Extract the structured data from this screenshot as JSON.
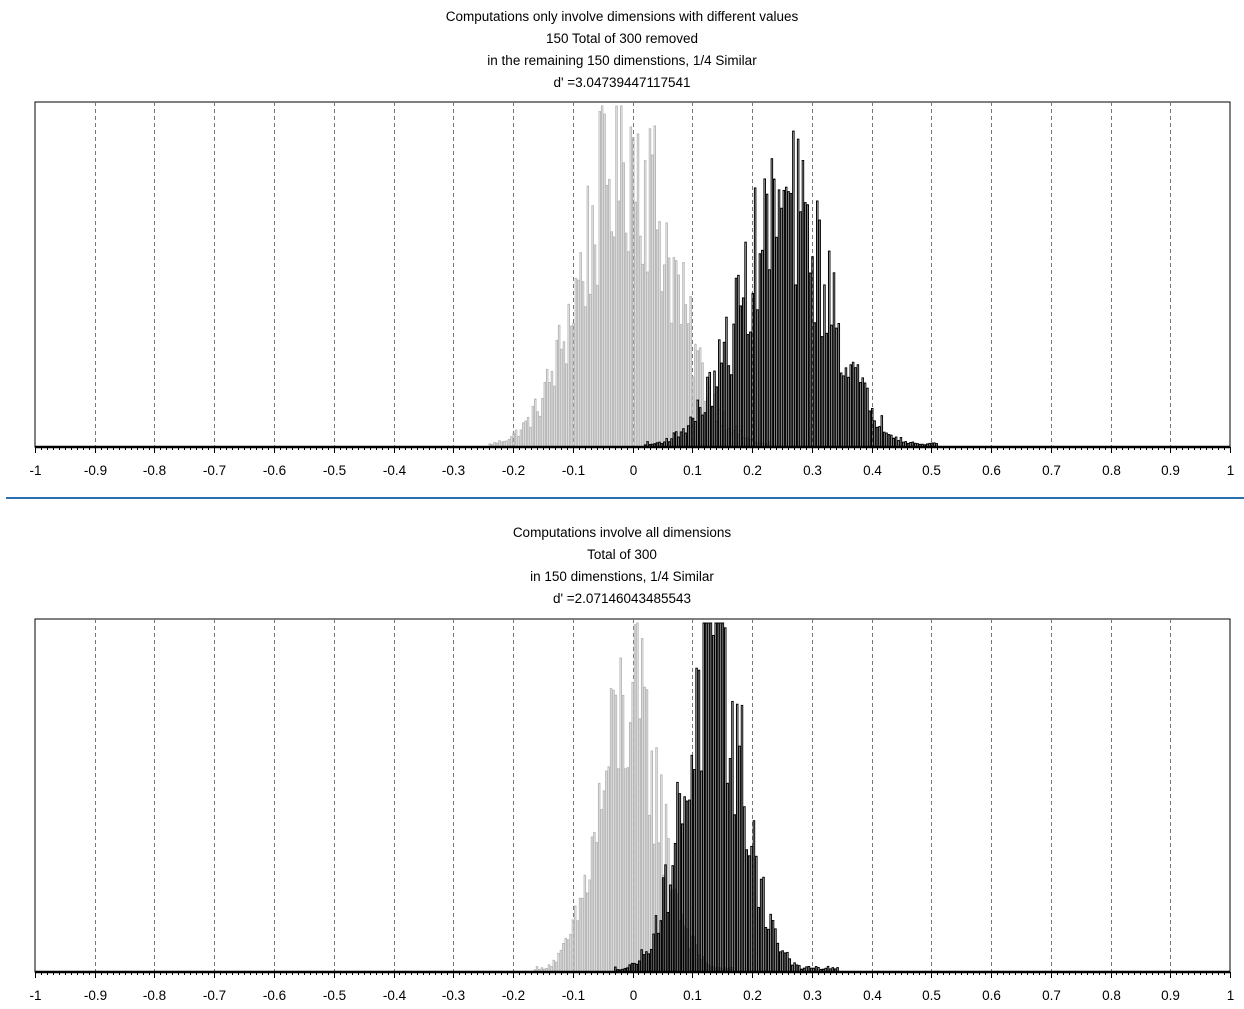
{
  "chart_data": [
    {
      "type": "bar",
      "title_lines": [
        "Computations only involve dimensions with different values",
        "150 Total of 300 removed",
        "in the remaining 150 dimenstions, 1/4 Similar",
        "d' =3.04739447117541"
      ],
      "xlim": [
        -1,
        1
      ],
      "x_ticks": [
        "-1",
        "-0.9",
        "-0.8",
        "-0.7",
        "-0.6",
        "-0.5",
        "-0.4",
        "-0.3",
        "-0.2",
        "-0.1",
        "0",
        "0.1",
        "0.2",
        "0.3",
        "0.4",
        "0.5",
        "0.6",
        "0.7",
        "0.8",
        "0.9",
        "1"
      ],
      "grid": true,
      "series": [
        {
          "color": "#b8b8b8",
          "distribution": {
            "mean": -0.01,
            "sd": 0.075,
            "min": -0.24,
            "max": 0.23,
            "peak": 1.0
          }
        },
        {
          "color": "#000000",
          "distribution": {
            "mean": 0.255,
            "sd": 0.075,
            "min": 0.02,
            "max": 0.51,
            "peak": 0.8
          }
        }
      ]
    },
    {
      "type": "bar",
      "title_lines": [
        "Computations involve all dimensions",
        "Total of 300",
        "in 150 dimenstions, 1/4 Similar",
        "d' =2.07146043485543"
      ],
      "xlim": [
        -1,
        1
      ],
      "x_ticks": [
        "-1",
        "-0.9",
        "-0.8",
        "-0.7",
        "-0.6",
        "-0.5",
        "-0.4",
        "-0.3",
        "-0.2",
        "-0.1",
        "0",
        "0.1",
        "0.2",
        "0.3",
        "0.4",
        "0.5",
        "0.6",
        "0.7",
        "0.8",
        "0.9",
        "1"
      ],
      "grid": true,
      "series": [
        {
          "color": "#b8b8b8",
          "distribution": {
            "mean": -0.005,
            "sd": 0.05,
            "min": -0.165,
            "max": 0.17,
            "peak": 0.88
          }
        },
        {
          "color": "#000000",
          "distribution": {
            "mean": 0.135,
            "sd": 0.05,
            "min": -0.03,
            "max": 0.345,
            "peak": 1.0
          }
        }
      ]
    }
  ]
}
